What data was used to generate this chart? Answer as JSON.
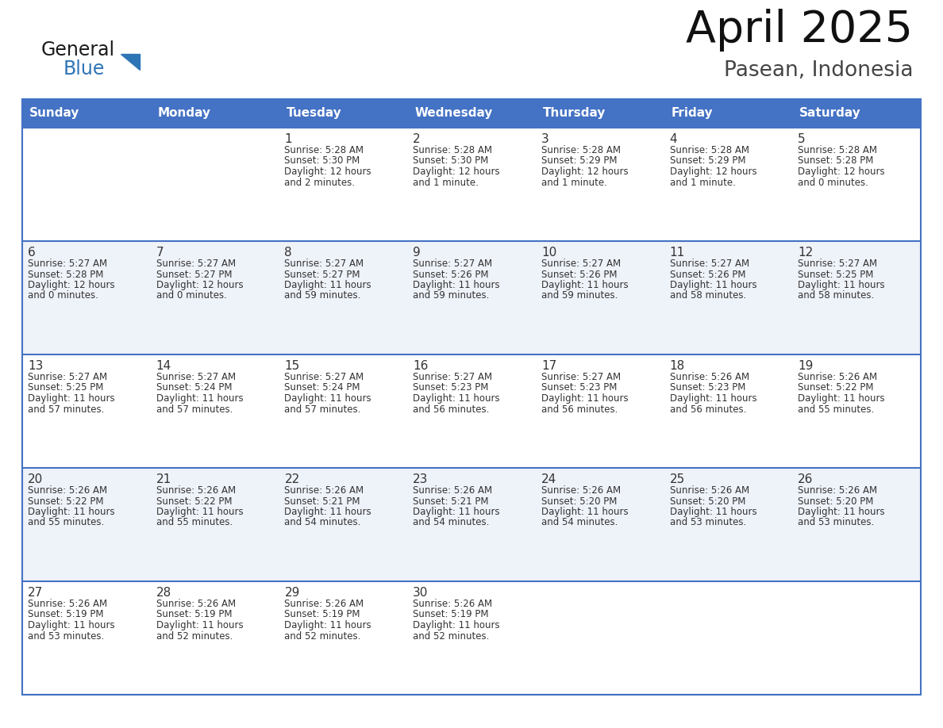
{
  "title": "April 2025",
  "subtitle": "Pasean, Indonesia",
  "days_of_week": [
    "Sunday",
    "Monday",
    "Tuesday",
    "Wednesday",
    "Thursday",
    "Friday",
    "Saturday"
  ],
  "header_bg": "#4472C4",
  "header_text": "#FFFFFF",
  "row_line_color": "#4472C4",
  "text_color": "#333333",
  "day_num_color": "#333333",
  "logo_general_color": "#1a1a1a",
  "logo_blue_color": "#2E75B6",
  "cell_bg_even": "#FFFFFF",
  "cell_bg_odd": "#EEF2F9",
  "calendar_data": [
    [
      {
        "day": null,
        "info": ""
      },
      {
        "day": null,
        "info": ""
      },
      {
        "day": 1,
        "info": "Sunrise: 5:28 AM\nSunset: 5:30 PM\nDaylight: 12 hours\nand 2 minutes."
      },
      {
        "day": 2,
        "info": "Sunrise: 5:28 AM\nSunset: 5:30 PM\nDaylight: 12 hours\nand 1 minute."
      },
      {
        "day": 3,
        "info": "Sunrise: 5:28 AM\nSunset: 5:29 PM\nDaylight: 12 hours\nand 1 minute."
      },
      {
        "day": 4,
        "info": "Sunrise: 5:28 AM\nSunset: 5:29 PM\nDaylight: 12 hours\nand 1 minute."
      },
      {
        "day": 5,
        "info": "Sunrise: 5:28 AM\nSunset: 5:28 PM\nDaylight: 12 hours\nand 0 minutes."
      }
    ],
    [
      {
        "day": 6,
        "info": "Sunrise: 5:27 AM\nSunset: 5:28 PM\nDaylight: 12 hours\nand 0 minutes."
      },
      {
        "day": 7,
        "info": "Sunrise: 5:27 AM\nSunset: 5:27 PM\nDaylight: 12 hours\nand 0 minutes."
      },
      {
        "day": 8,
        "info": "Sunrise: 5:27 AM\nSunset: 5:27 PM\nDaylight: 11 hours\nand 59 minutes."
      },
      {
        "day": 9,
        "info": "Sunrise: 5:27 AM\nSunset: 5:26 PM\nDaylight: 11 hours\nand 59 minutes."
      },
      {
        "day": 10,
        "info": "Sunrise: 5:27 AM\nSunset: 5:26 PM\nDaylight: 11 hours\nand 59 minutes."
      },
      {
        "day": 11,
        "info": "Sunrise: 5:27 AM\nSunset: 5:26 PM\nDaylight: 11 hours\nand 58 minutes."
      },
      {
        "day": 12,
        "info": "Sunrise: 5:27 AM\nSunset: 5:25 PM\nDaylight: 11 hours\nand 58 minutes."
      }
    ],
    [
      {
        "day": 13,
        "info": "Sunrise: 5:27 AM\nSunset: 5:25 PM\nDaylight: 11 hours\nand 57 minutes."
      },
      {
        "day": 14,
        "info": "Sunrise: 5:27 AM\nSunset: 5:24 PM\nDaylight: 11 hours\nand 57 minutes."
      },
      {
        "day": 15,
        "info": "Sunrise: 5:27 AM\nSunset: 5:24 PM\nDaylight: 11 hours\nand 57 minutes."
      },
      {
        "day": 16,
        "info": "Sunrise: 5:27 AM\nSunset: 5:23 PM\nDaylight: 11 hours\nand 56 minutes."
      },
      {
        "day": 17,
        "info": "Sunrise: 5:27 AM\nSunset: 5:23 PM\nDaylight: 11 hours\nand 56 minutes."
      },
      {
        "day": 18,
        "info": "Sunrise: 5:26 AM\nSunset: 5:23 PM\nDaylight: 11 hours\nand 56 minutes."
      },
      {
        "day": 19,
        "info": "Sunrise: 5:26 AM\nSunset: 5:22 PM\nDaylight: 11 hours\nand 55 minutes."
      }
    ],
    [
      {
        "day": 20,
        "info": "Sunrise: 5:26 AM\nSunset: 5:22 PM\nDaylight: 11 hours\nand 55 minutes."
      },
      {
        "day": 21,
        "info": "Sunrise: 5:26 AM\nSunset: 5:22 PM\nDaylight: 11 hours\nand 55 minutes."
      },
      {
        "day": 22,
        "info": "Sunrise: 5:26 AM\nSunset: 5:21 PM\nDaylight: 11 hours\nand 54 minutes."
      },
      {
        "day": 23,
        "info": "Sunrise: 5:26 AM\nSunset: 5:21 PM\nDaylight: 11 hours\nand 54 minutes."
      },
      {
        "day": 24,
        "info": "Sunrise: 5:26 AM\nSunset: 5:20 PM\nDaylight: 11 hours\nand 54 minutes."
      },
      {
        "day": 25,
        "info": "Sunrise: 5:26 AM\nSunset: 5:20 PM\nDaylight: 11 hours\nand 53 minutes."
      },
      {
        "day": 26,
        "info": "Sunrise: 5:26 AM\nSunset: 5:20 PM\nDaylight: 11 hours\nand 53 minutes."
      }
    ],
    [
      {
        "day": 27,
        "info": "Sunrise: 5:26 AM\nSunset: 5:19 PM\nDaylight: 11 hours\nand 53 minutes."
      },
      {
        "day": 28,
        "info": "Sunrise: 5:26 AM\nSunset: 5:19 PM\nDaylight: 11 hours\nand 52 minutes."
      },
      {
        "day": 29,
        "info": "Sunrise: 5:26 AM\nSunset: 5:19 PM\nDaylight: 11 hours\nand 52 minutes."
      },
      {
        "day": 30,
        "info": "Sunrise: 5:26 AM\nSunset: 5:19 PM\nDaylight: 11 hours\nand 52 minutes."
      },
      {
        "day": null,
        "info": ""
      },
      {
        "day": null,
        "info": ""
      },
      {
        "day": null,
        "info": ""
      }
    ]
  ]
}
